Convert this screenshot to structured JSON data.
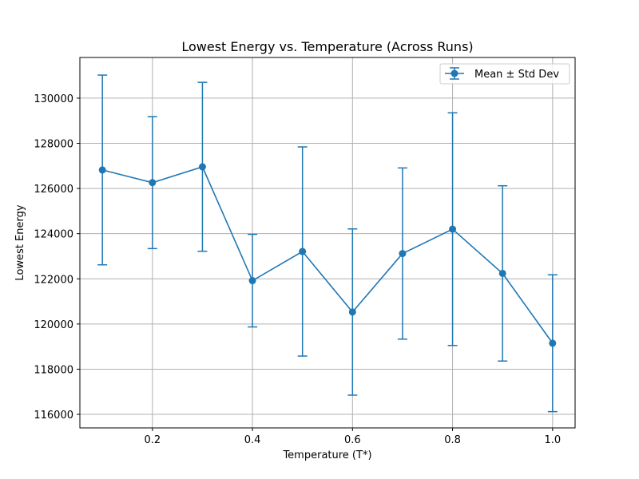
{
  "chart_data": {
    "type": "line",
    "title": "Lowest Energy vs. Temperature (Across Runs)",
    "xlabel": "Temperature (T*)",
    "ylabel": "Lowest Energy",
    "xlim": [
      0.055,
      1.045
    ],
    "ylim": [
      115400,
      131800
    ],
    "xticks": [
      0.2,
      0.4,
      0.6,
      0.8,
      1.0
    ],
    "xtick_labels": [
      "0.2",
      "0.4",
      "0.6",
      "0.8",
      "1.0"
    ],
    "yticks": [
      116000,
      118000,
      120000,
      122000,
      124000,
      126000,
      128000,
      130000
    ],
    "ytick_labels": [
      "116000",
      "118000",
      "120000",
      "122000",
      "124000",
      "126000",
      "128000",
      "130000"
    ],
    "grid": true,
    "legend_position": "top-right",
    "series": [
      {
        "name": "Mean ± Std Dev",
        "color": "#1f77b4",
        "marker": "circle",
        "errorbars": true,
        "x": [
          0.1,
          0.2,
          0.3,
          0.4,
          0.5,
          0.6,
          0.7,
          0.8,
          0.9,
          1.0
        ],
        "y": [
          126820,
          126260,
          126960,
          121920,
          123210,
          120530,
          123120,
          124200,
          122240,
          119150
        ],
        "yerr": [
          4200,
          2920,
          3740,
          2050,
          4630,
          3680,
          3790,
          5150,
          3880,
          3030
        ]
      }
    ]
  }
}
